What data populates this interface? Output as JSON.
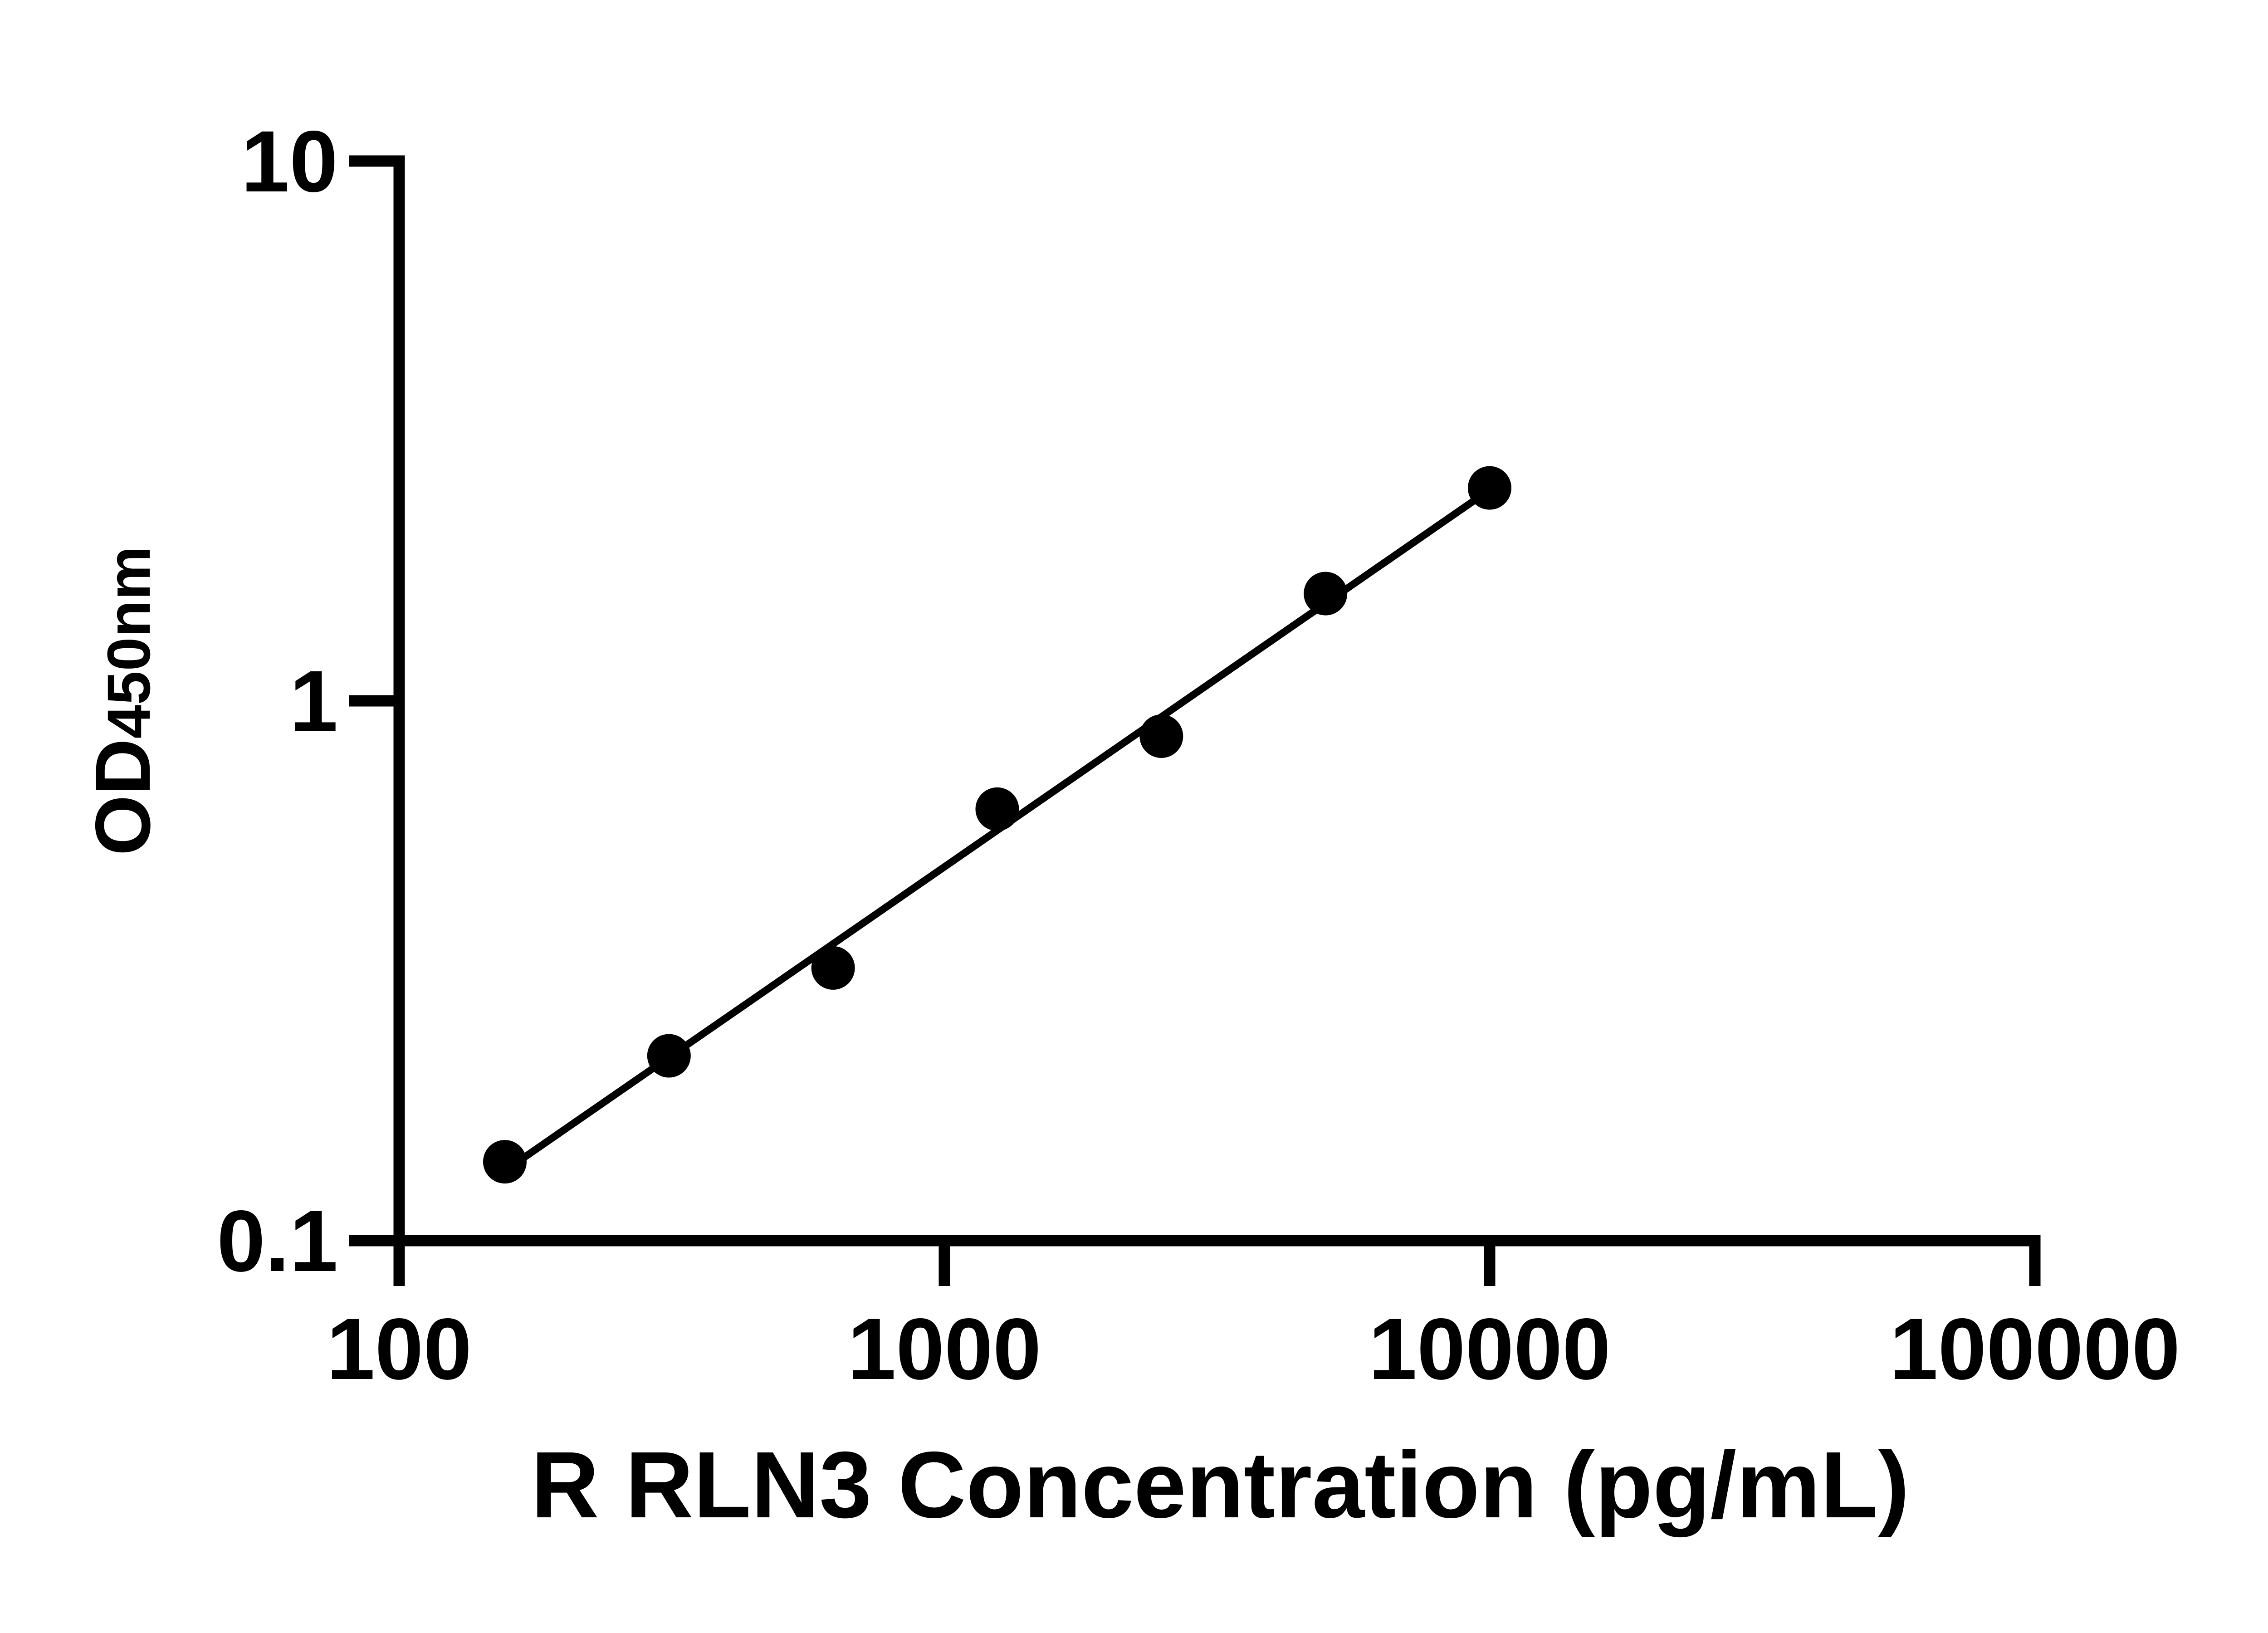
{
  "figure": {
    "background_color": "#ffffff",
    "foreground_color": "#000000",
    "kind": "ELISA standard curve"
  },
  "chart_data": {
    "type": "scatter",
    "title": "",
    "xlabel": "R RLN3 Concentration (pg/mL)",
    "ylabel": "OD450nm",
    "ylabel_main": "OD",
    "ylabel_sub": "450nm",
    "x_scale": "log10",
    "y_scale": "log10",
    "xlim": [
      100,
      100000
    ],
    "ylim": [
      0.1,
      10
    ],
    "x_tick_values": [
      100,
      1000,
      10000,
      100000
    ],
    "x_tick_labels": [
      "100",
      "1000",
      "10000",
      "100000"
    ],
    "y_tick_values": [
      10,
      1,
      0.1
    ],
    "y_tick_labels": [
      "10",
      "1",
      "0.1"
    ],
    "grid": false,
    "legend": "none",
    "marker": {
      "shape": "filled-circle",
      "color": "#000000"
    },
    "trend_line": {
      "fit": "linear fit in log-log space",
      "color": "#000000",
      "spans": "first point to last point"
    },
    "points": [
      {
        "x": 156.25,
        "y": 0.14
      },
      {
        "x": 312.5,
        "y": 0.22
      },
      {
        "x": 625,
        "y": 0.32
      },
      {
        "x": 1250,
        "y": 0.63
      },
      {
        "x": 2500,
        "y": 0.86
      },
      {
        "x": 5000,
        "y": 1.58
      },
      {
        "x": 10000,
        "y": 2.48
      }
    ]
  }
}
